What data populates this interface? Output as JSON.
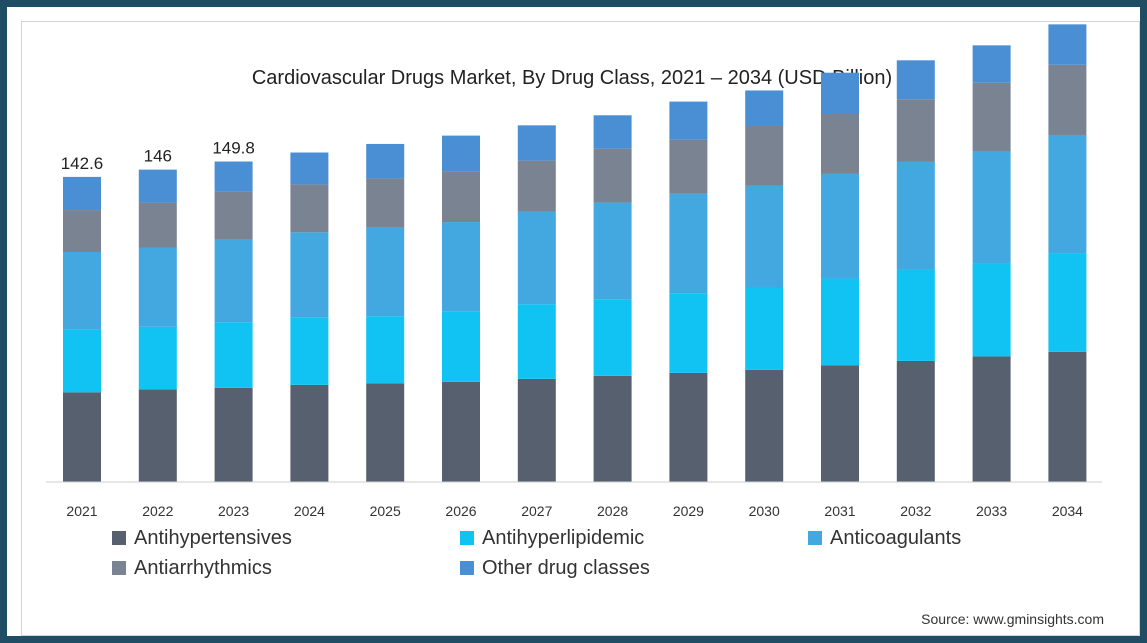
{
  "chart_data": {
    "type": "bar",
    "stacked": true,
    "title": "Cardiovascular Drugs Market, By Drug Class, 2021 – 2034 (USD Billion)",
    "xlabel": "",
    "ylabel": "",
    "categories": [
      "2021",
      "2022",
      "2023",
      "2024",
      "2025",
      "2026",
      "2027",
      "2028",
      "2029",
      "2030",
      "2031",
      "2032",
      "2033",
      "2034"
    ],
    "series": [
      {
        "name": "Antihypertensives",
        "color": "#56606e",
        "values": [
          41.9,
          43.3,
          44.0,
          45.4,
          46.1,
          46.8,
          48.2,
          49.6,
          51.0,
          52.4,
          54.5,
          56.6,
          58.7,
          60.8
        ]
      },
      {
        "name": "Antihyperlipidemic",
        "color": "#11c3f2",
        "values": [
          29.3,
          29.3,
          30.7,
          31.4,
          31.4,
          32.8,
          34.9,
          35.6,
          37.0,
          38.5,
          40.6,
          42.7,
          43.4,
          46.2
        ]
      },
      {
        "name": "Anticoagulants",
        "color": "#44a8e0",
        "values": [
          36.3,
          37.0,
          38.5,
          39.9,
          41.3,
          41.9,
          43.3,
          45.4,
          46.8,
          47.5,
          48.9,
          50.3,
          52.4,
          55.2
        ]
      },
      {
        "name": "Antiarrhythmics",
        "color": "#7a8392",
        "values": [
          19.6,
          21.0,
          22.4,
          22.4,
          23.1,
          23.8,
          23.8,
          25.2,
          25.2,
          28.0,
          28.0,
          29.3,
          32.1,
          32.8
        ]
      },
      {
        "name": "Other drug classes",
        "color": "#4a8fd4",
        "values": [
          15.5,
          15.4,
          14.2,
          14.9,
          16.1,
          16.6,
          16.5,
          15.6,
          17.8,
          16.6,
          19.3,
          18.2,
          17.5,
          18.9
        ]
      }
    ],
    "data_labels": [
      {
        "category": "2021",
        "text": "142.6"
      },
      {
        "category": "2022",
        "text": "146"
      },
      {
        "category": "2023",
        "text": "149.8"
      }
    ],
    "ylim": [
      0,
      215
    ],
    "grid": false,
    "legend_position": "bottom"
  },
  "source": "Source: www.gminsights.com"
}
